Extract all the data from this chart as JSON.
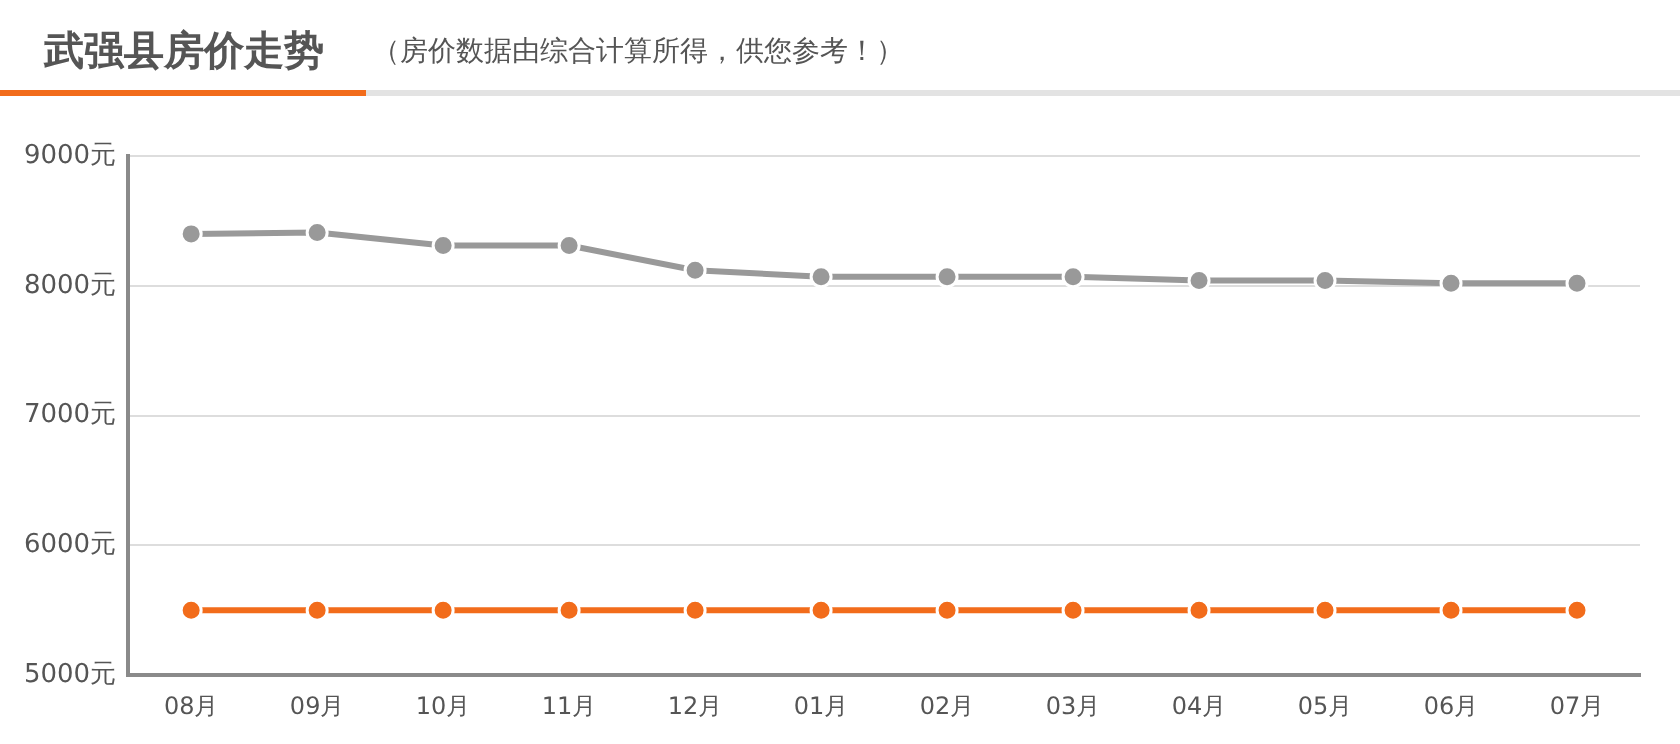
{
  "chart_data": {
    "type": "line",
    "title": "武强县房价走势",
    "subtitle": "（房价数据由综合计算所得，供您参考！）",
    "categories": [
      "08月",
      "09月",
      "10月",
      "11月",
      "12月",
      "01月",
      "02月",
      "03月",
      "04月",
      "05月",
      "06月",
      "07月"
    ],
    "series": [
      {
        "color": "#999999",
        "values": [
          8400,
          8410,
          8310,
          8310,
          8120,
          8070,
          8070,
          8070,
          8040,
          8040,
          8020,
          8020
        ]
      },
      {
        "color": "#f26c1b",
        "values": [
          5500,
          5500,
          5500,
          5500,
          5500,
          5500,
          5500,
          5500,
          5500,
          5500,
          5500,
          5500
        ]
      }
    ],
    "ylim": [
      5000,
      9000
    ],
    "yticks": [
      {
        "value": 5000,
        "label": "5000元"
      },
      {
        "value": 6000,
        "label": "6000元"
      },
      {
        "value": 7000,
        "label": "7000元"
      },
      {
        "value": 8000,
        "label": "8000元"
      },
      {
        "value": 9000,
        "label": "9000元"
      }
    ],
    "grid": "y",
    "marker": "circle",
    "line_style": "solid"
  }
}
